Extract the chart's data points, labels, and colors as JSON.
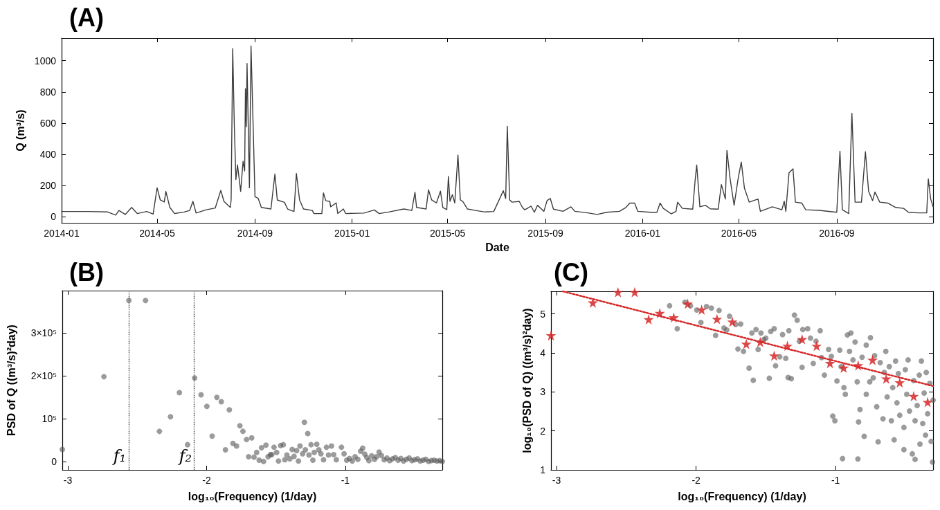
{
  "chart_data": [
    {
      "type": "line",
      "title": "(A)",
      "xlabel": "Date",
      "ylabel": "Q (m³/s)",
      "color": "#3c3c3c",
      "marker": "none",
      "line_style": "solid",
      "grid": false,
      "xlim": [
        "2014-01-01",
        "2016-12-31"
      ],
      "xticks": [
        "2014-01",
        "2014-05",
        "2014-09",
        "2015-01",
        "2015-05",
        "2015-09",
        "2016-01",
        "2016-05",
        "2016-09"
      ],
      "ylim": [
        -40,
        1145
      ],
      "yticks": [
        0,
        200,
        400,
        600,
        800,
        1000
      ],
      "x": [
        "2014-01-01",
        "2014-02-03",
        "2014-02-28",
        "2014-03-10",
        "2014-03-14",
        "2014-03-22",
        "2014-03-30",
        "2014-04-06",
        "2014-04-18",
        "2014-04-26",
        "2014-05-01",
        "2014-05-05",
        "2014-05-10",
        "2014-05-12",
        "2014-05-17",
        "2014-05-23",
        "2014-06-04",
        "2014-06-11",
        "2014-06-15",
        "2014-06-19",
        "2014-07-01",
        "2014-07-13",
        "2014-07-20",
        "2014-07-24",
        "2014-08-01",
        "2014-08-02",
        "2014-08-04",
        "2014-08-06",
        "2014-08-08",
        "2014-08-10",
        "2014-08-14",
        "2014-08-17",
        "2014-08-19",
        "2014-08-20",
        "2014-08-21",
        "2014-08-22",
        "2014-08-25",
        "2014-08-27",
        "2014-09-01",
        "2014-09-05",
        "2014-09-09",
        "2014-09-21",
        "2014-09-26",
        "2014-09-29",
        "2014-10-08",
        "2014-10-12",
        "2014-10-20",
        "2014-10-23",
        "2014-10-27",
        "2014-11-01",
        "2014-11-12",
        "2014-11-14",
        "2014-11-24",
        "2014-11-26",
        "2014-11-29",
        "2014-12-04",
        "2014-12-05",
        "2014-12-12",
        "2014-12-14",
        "2014-12-21",
        "2014-12-24",
        "2015-01-16",
        "2015-01-29",
        "2015-02-04",
        "2015-02-16",
        "2015-03-07",
        "2015-03-17",
        "2015-03-21",
        "2015-03-23",
        "2015-04-04",
        "2015-04-07",
        "2015-04-11",
        "2015-04-17",
        "2015-04-22",
        "2015-04-25",
        "2015-04-30",
        "2015-05-02",
        "2015-05-04",
        "2015-05-07",
        "2015-05-10",
        "2015-05-14",
        "2015-05-17",
        "2015-05-20",
        "2015-05-26",
        "2015-06-05",
        "2015-06-17",
        "2015-06-28",
        "2015-07-10",
        "2015-07-13",
        "2015-07-15",
        "2015-07-18",
        "2015-07-21",
        "2015-07-30",
        "2015-08-03",
        "2015-08-06",
        "2015-08-14",
        "2015-08-18",
        "2015-08-22",
        "2015-08-30",
        "2015-09-03",
        "2015-09-07",
        "2015-09-11",
        "2015-09-23",
        "2015-10-03",
        "2015-10-08",
        "2015-10-24",
        "2015-11-05",
        "2015-11-17",
        "2015-12-03",
        "2015-12-11",
        "2015-12-16",
        "2015-12-22",
        "2015-12-26",
        "2016-01-11",
        "2016-01-19",
        "2016-01-23",
        "2016-01-27",
        "2016-02-06",
        "2016-02-12",
        "2016-02-14",
        "2016-02-20",
        "2016-03-04",
        "2016-03-07",
        "2016-03-09",
        "2016-03-13",
        "2016-03-20",
        "2016-03-26",
        "2016-04-05",
        "2016-04-09",
        "2016-04-14",
        "2016-04-16",
        "2016-04-20",
        "2016-04-25",
        "2016-04-30",
        "2016-05-04",
        "2016-05-08",
        "2016-05-14",
        "2016-05-25",
        "2016-05-28",
        "2016-06-12",
        "2016-06-24",
        "2016-06-27",
        "2016-06-29",
        "2016-07-03",
        "2016-07-08",
        "2016-07-11",
        "2016-07-19",
        "2016-07-24",
        "2016-08-10",
        "2016-09-01",
        "2016-09-05",
        "2016-09-08",
        "2016-09-16",
        "2016-09-20",
        "2016-09-24",
        "2016-10-02",
        "2016-10-07",
        "2016-10-11",
        "2016-10-16",
        "2016-10-19",
        "2016-10-25",
        "2016-11-04",
        "2016-11-14",
        "2016-11-24",
        "2016-11-30",
        "2016-12-12",
        "2016-12-23",
        "2016-12-25",
        "2016-12-28",
        "2016-12-31"
      ],
      "values": [
        33,
        33,
        30,
        10,
        40,
        14,
        59,
        20,
        33,
        16,
        185,
        107,
        94,
        162,
        59,
        20,
        30,
        40,
        98,
        23,
        43,
        55,
        168,
        98,
        59,
        107,
        1078,
        586,
        238,
        332,
        162,
        355,
        293,
        820,
        576,
        982,
        185,
        1094,
        127,
        117,
        59,
        49,
        273,
        107,
        92,
        49,
        33,
        277,
        107,
        49,
        40,
        20,
        20,
        152,
        102,
        98,
        63,
        88,
        20,
        49,
        20,
        23,
        43,
        20,
        30,
        49,
        40,
        156,
        59,
        49,
        172,
        107,
        88,
        164,
        59,
        45,
        258,
        98,
        141,
        88,
        395,
        107,
        98,
        49,
        40,
        30,
        33,
        166,
        117,
        580,
        107,
        93,
        98,
        59,
        44,
        67,
        28,
        73,
        34,
        103,
        117,
        48,
        34,
        63,
        34,
        24,
        14,
        28,
        34,
        59,
        87,
        87,
        34,
        28,
        28,
        87,
        53,
        18,
        34,
        93,
        53,
        48,
        232,
        331,
        63,
        73,
        50,
        48,
        206,
        113,
        424,
        242,
        73,
        242,
        350,
        182,
        93,
        113,
        34,
        63,
        44,
        99,
        34,
        281,
        307,
        93,
        87,
        44,
        40,
        28,
        420,
        44,
        20,
        663,
        93,
        93,
        416,
        162,
        103,
        158,
        93,
        87,
        59,
        53,
        28,
        24,
        24,
        242,
        113,
        63
      ]
    },
    {
      "type": "scatter",
      "title": "(B)",
      "xlabel": "log₁₀(Frequency) (1/day)",
      "ylabel": "PSD of Q ((m³/s)²day)",
      "color": "#595959",
      "marker": "circle",
      "grid": false,
      "xlim": [
        -3.04,
        -0.301
      ],
      "xticks": [
        -3,
        -2,
        -1
      ],
      "ylim": [
        -18500,
        398000
      ],
      "yticks": [
        0,
        {
          "value": 100000,
          "label": "10⁵"
        },
        {
          "value": 200000,
          "label": "2×10⁵"
        },
        {
          "value": 300000,
          "label": "3×10⁵"
        }
      ],
      "ref_lines": [
        {
          "axis": "x",
          "value": -2.56,
          "color": "#404040",
          "line_style": "dotted"
        },
        {
          "axis": "x",
          "value": -2.086,
          "color": "#404040",
          "line_style": "dotted"
        }
      ],
      "annotations": [
        {
          "text": "f₁",
          "x": -2.56,
          "y": 0
        },
        {
          "text": "f₂",
          "x": -2.086,
          "y": 0
        }
      ],
      "x": [
        -3.04,
        -2.74,
        -2.56,
        -2.44,
        -2.34,
        -2.26,
        -2.196,
        -2.137,
        -2.086,
        -2.04,
        -1.998,
        -1.96,
        -1.926,
        -1.894,
        -1.864,
        -1.836,
        -1.81,
        -1.784,
        -1.76,
        -1.738,
        -1.712,
        -1.697,
        -1.675,
        -1.658,
        -1.639,
        -1.621,
        -1.604,
        -1.589,
        -1.572,
        -1.557,
        -1.54,
        -1.53,
        -1.514,
        -1.495,
        -1.482,
        -1.467,
        -1.447,
        -1.436,
        -1.421,
        -1.4,
        -1.383,
        -1.37,
        -1.351,
        -1.338,
        -1.327,
        -1.308,
        -1.295,
        -1.288,
        -1.271,
        -1.262,
        -1.247,
        -1.234,
        -1.224,
        -1.206,
        -1.191,
        -1.176,
        -1.157,
        -1.136,
        -1.121,
        -1.1,
        -1.084,
        -1.065,
        -1.028,
        -1.009,
        -0.99,
        -0.97,
        -0.95,
        -0.93,
        -0.91,
        -0.89,
        -0.875,
        -0.86,
        -0.845,
        -0.83,
        -0.81,
        -0.79,
        -0.775,
        -0.757,
        -0.74,
        -0.72,
        -0.7,
        -0.68,
        -0.66,
        -0.64,
        -0.62,
        -0.6,
        -0.58,
        -0.56,
        -0.54,
        -0.52,
        -0.5,
        -0.48,
        -0.46,
        -0.44,
        -0.42,
        -0.4,
        -0.38,
        -0.36,
        -0.34,
        -0.32,
        -0.301
      ],
      "values": [
        29000,
        198000,
        375000,
        375000,
        71000,
        105000,
        161000,
        40000,
        195000,
        156000,
        129000,
        60000,
        150000,
        140000,
        28000,
        121000,
        43000,
        37000,
        84000,
        71000,
        52000,
        12000,
        56000,
        11000,
        22000,
        4000,
        33000,
        1000,
        39000,
        12000,
        17000,
        17000,
        34000,
        22000,
        2000,
        38000,
        40000,
        5000,
        16000,
        7000,
        29000,
        13000,
        26000,
        2000,
        37000,
        19000,
        92000,
        28000,
        66000,
        16000,
        40000,
        4000,
        22000,
        41000,
        28000,
        19000,
        5000,
        34000,
        16000,
        37000,
        17000,
        5000,
        34000,
        19000,
        4000,
        8000,
        2000,
        12000,
        6000,
        25000,
        32000,
        18000,
        10000,
        3000,
        14000,
        6000,
        12000,
        23000,
        15000,
        5000,
        9000,
        3000,
        7000,
        10000,
        4000,
        8000,
        2000,
        6000,
        9000,
        3000,
        5000,
        7000,
        2000,
        4000,
        6000,
        1000,
        3000,
        4000,
        2000,
        3000,
        1000
      ]
    },
    {
      "type": "scatter",
      "title": "(C)",
      "xlabel": "log₁₀(Frequency) (1/day)",
      "ylabel": "log₁₀(PSD of Q) ((m³/s)²day)",
      "grid": false,
      "xlim": [
        -3.04,
        -0.301
      ],
      "xticks": [
        -3,
        -2,
        -1
      ],
      "ylim": [
        1,
        5.58
      ],
      "yticks": [
        1,
        2,
        3,
        4,
        5
      ],
      "series": [
        {
          "marker": "circle",
          "color": "#595959",
          "x": [
            -2.19,
            -2.135,
            -2.08,
            -2.04,
            -1.995,
            -1.965,
            -1.925,
            -1.89,
            -1.86,
            -1.835,
            -1.8,
            -1.78,
            -1.76,
            -1.715,
            -1.68,
            -1.7,
            -1.66,
            -1.62,
            -1.6,
            -1.59,
            -1.57,
            -1.555,
            -1.535,
            -1.515,
            -1.5,
            -1.475,
            -1.465,
            -1.44,
            -1.43,
            -1.4,
            -1.38,
            -1.357,
            -1.34,
            -1.335,
            -1.317,
            -1.295,
            -1.275,
            -1.26,
            -1.24,
            -1.235,
            -1.2,
            -1.18,
            -1.16,
            -1.14,
            -1.11,
            -1.1,
            -1.08,
            -1.05,
            -1.03,
            -1.02,
            -1.005,
            -0.99,
            -0.97,
            -0.96,
            -0.95,
            -0.94,
            -0.93,
            -0.915,
            -0.9,
            -0.89,
            -0.875,
            -0.86,
            -0.845,
            -0.84,
            -0.835,
            -0.825,
            -0.81,
            -0.795,
            -0.78,
            -0.78,
            -0.755,
            -0.75,
            -0.73,
            -0.72,
            -0.705,
            -0.695,
            -0.68,
            -0.66,
            -0.65,
            -0.64,
            -0.63,
            -0.615,
            -0.6,
            -0.59,
            -0.58,
            -0.57,
            -0.56,
            -0.55,
            -0.54,
            -0.51,
            -0.51,
            -0.5,
            -0.49,
            -0.48,
            -0.47,
            -0.45,
            -0.44,
            -0.43,
            -0.43,
            -0.415,
            -0.4,
            -0.395,
            -0.385,
            -0.375,
            -0.365,
            -0.355,
            -0.35,
            -0.34,
            -0.325,
            -0.315,
            -0.305,
            -0.301
          ],
          "values": [
            5.21,
            4.62,
            5.3,
            5.21,
            5.1,
            4.78,
            5.19,
            5.15,
            4.45,
            5.09,
            4.64,
            4.59,
            4.94,
            4.73,
            4.74,
            4.1,
            4.04,
            3.61,
            4.51,
            3.3,
            4.6,
            4.09,
            4.51,
            4.34,
            4.38,
            3.35,
            4.55,
            4.62,
            3.67,
            3.9,
            4.47,
            3.86,
            3.37,
            4.57,
            3.34,
            4.97,
            4.84,
            4.3,
            3.63,
            4.6,
            4.62,
            4.38,
            3.73,
            4.3,
            4.57,
            3.88,
            3.43,
            4.09,
            3.91,
            2.38,
            2.26,
            3.28,
            4.07,
            3.65,
            1.29,
            3.11,
            2.94,
            4.46,
            4.04,
            4.51,
            3.82,
            4.28,
            3.26,
            1.28,
            2.23,
            2.55,
            3.89,
            1.86,
            4.2,
            2.94,
            3.26,
            4.39,
            3.36,
            3.93,
            2.62,
            1.72,
            3.75,
            2.31,
            3.5,
            4.04,
            2.87,
            3.65,
            2.26,
            3.11,
            1.77,
            3.79,
            2.72,
            3.47,
            2.4,
            1.52,
            2.09,
            3.57,
            2.94,
            3.82,
            2.51,
            1.41,
            3.29,
            1.27,
            2.26,
            2.65,
            3.43,
            1.66,
            3.79,
            2.19,
            2.97,
            1.89,
            3.5,
            2.44,
            3.22,
            1.73,
            1.2,
            2.79
          ]
        },
        {
          "marker": "star",
          "color": "#d62728",
          "x": [
            -3.04,
            -2.74,
            -2.56,
            -2.44,
            -2.34,
            -2.26,
            -2.16,
            -2.06,
            -1.96,
            -1.85,
            -1.74,
            -1.64,
            -1.54,
            -1.44,
            -1.345,
            -1.24,
            -1.136,
            -1.04,
            -0.942,
            -0.838,
            -0.735,
            -0.637,
            -0.54,
            -0.44,
            -0.34
          ],
          "values": [
            4.45,
            5.29,
            5.56,
            5.56,
            4.86,
            5.02,
            4.91,
            5.26,
            5.11,
            4.87,
            4.8,
            4.23,
            4.28,
            3.93,
            4.18,
            4.35,
            4.18,
            3.74,
            3.62,
            3.68,
            3.82,
            3.34,
            3.24,
            2.89,
            2.74
          ]
        },
        {
          "type": "line",
          "marker": "none",
          "line_style": "dotted",
          "color": "#d62728",
          "x": [
            -2.955,
            -0.301
          ],
          "values": [
            5.58,
            3.15
          ]
        }
      ]
    }
  ]
}
